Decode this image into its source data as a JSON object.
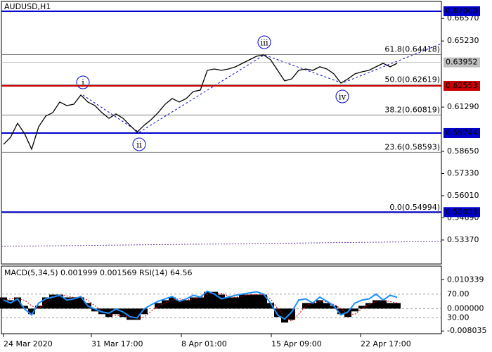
{
  "chart_data": [
    {
      "type": "line",
      "title": "AUDUSD,H1",
      "x": [
        0,
        1,
        2,
        3,
        4,
        5,
        6,
        7,
        8,
        9,
        10,
        11,
        12,
        13,
        14,
        15,
        16,
        17,
        18,
        19,
        20,
        21,
        22,
        23,
        24,
        25,
        26,
        27,
        28,
        29,
        30,
        31,
        32,
        33,
        34,
        35,
        36,
        37,
        38,
        39,
        40,
        41,
        42,
        43,
        44,
        45,
        46,
        47,
        48,
        49,
        50,
        51,
        52,
        53,
        54,
        55,
        56
      ],
      "series": [
        {
          "name": "AUDUSD",
          "color": "#000000",
          "values": [
            0.5907,
            0.5949,
            0.6033,
            0.597,
            0.5878,
            0.6012,
            0.6075,
            0.6096,
            0.6159,
            0.6138,
            0.6146,
            0.6201,
            0.6159,
            0.6138,
            0.6096,
            0.6062,
            0.6088,
            0.6062,
            0.602,
            0.5979,
            0.602,
            0.6054,
            0.6096,
            0.6146,
            0.618,
            0.6159,
            0.618,
            0.6222,
            0.623,
            0.6348,
            0.6356,
            0.6348,
            0.6356,
            0.6369,
            0.639,
            0.6411,
            0.6432,
            0.644,
            0.6411,
            0.6348,
            0.6285,
            0.6297,
            0.6348,
            0.6356,
            0.6348,
            0.6369,
            0.6356,
            0.6327,
            0.6272,
            0.6297,
            0.6327,
            0.6339,
            0.6348,
            0.6369,
            0.639,
            0.6369,
            0.639
          ]
        }
      ],
      "xlim": [
        -0.3,
        62.3
      ],
      "xticks": [
        {
          "value": 0,
          "label": "24 Mar 2020"
        },
        {
          "value": 12.5,
          "label": "31 Mar 17:00"
        },
        {
          "value": 25.3,
          "label": "8 Apr 01:00"
        },
        {
          "value": 38.1,
          "label": "15 Apr 09:00"
        },
        {
          "value": 50.8,
          "label": "22 Apr 17:00"
        }
      ],
      "ylim": [
        0.5194,
        0.6767
      ],
      "yticks": [
        {
          "value": 0.6657,
          "label": "0.66570"
        },
        {
          "value": 0.6523,
          "label": "0.65230"
        },
        {
          "value": 0.6129,
          "label": "0.61290"
        },
        {
          "value": 0.5865,
          "label": "0.58650"
        },
        {
          "value": 0.5733,
          "label": "0.57330"
        },
        {
          "value": 0.5601,
          "label": "0.56010"
        },
        {
          "value": 0.5469,
          "label": "0.54690"
        },
        {
          "value": 0.5337,
          "label": "0.53370"
        }
      ],
      "levels": [
        {
          "value": 0.67,
          "label": "0.67000",
          "color": "#0000cd"
        },
        {
          "value": 0.62553,
          "label": "0.62553",
          "color": "#cc0000"
        },
        {
          "value": 0.59744,
          "label": "0.59744",
          "color": "#0000cd"
        },
        {
          "value": 0.55033,
          "label": "0.55033",
          "color": "#0000cd"
        }
      ],
      "fib_levels": [
        {
          "value": 0.64418,
          "label": "61.8(0.64418)"
        },
        {
          "value": 0.62619,
          "label": "50.0(0.62619)"
        },
        {
          "value": 0.60819,
          "label": "38.2(0.60819)"
        },
        {
          "value": 0.58593,
          "label": "23.6(0.58593)"
        },
        {
          "value": 0.54994,
          "label": "0.0(0.54994)"
        }
      ],
      "current_price": {
        "value": 0.63952,
        "label": "0.63952"
      },
      "waves": [
        "i",
        "ii",
        "iii",
        "iv"
      ]
    },
    {
      "type": "bar",
      "title": "MACD(5,34,5) 0.001999 0.001569 RSI(14) 64.56",
      "series": [
        {
          "name": "MACD",
          "color": "#000000",
          "values": [
            0.004,
            0.003,
            0.004,
            0.001,
            -0.002,
            0.001,
            0.004,
            0.005,
            0.005,
            0.004,
            0.004,
            0.004,
            0.002,
            -0.001,
            -0.002,
            -0.003,
            -0.002,
            -0.003,
            -0.004,
            -0.004,
            -0.002,
            0.0,
            0.002,
            0.003,
            0.004,
            0.003,
            0.003,
            0.004,
            0.004,
            0.006,
            0.006,
            0.005,
            0.004,
            0.004,
            0.005,
            0.005,
            0.005,
            0.005,
            0.002,
            -0.003,
            -0.005,
            -0.004,
            0.0,
            0.002,
            0.002,
            0.003,
            0.002,
            0.001,
            -0.002,
            -0.003,
            -0.001,
            0.001,
            0.002,
            0.003,
            0.003,
            0.002,
            0.002
          ]
        },
        {
          "name": "Signal",
          "color": "#cc0000",
          "values": [
            0.003,
            0.0035,
            0.0035,
            0.003,
            0.001,
            0.0,
            0.002,
            0.004,
            0.005,
            0.0045,
            0.004,
            0.004,
            0.003,
            0.001,
            -0.001,
            -0.002,
            -0.0025,
            -0.0025,
            -0.003,
            -0.0035,
            -0.003,
            -0.001,
            0.001,
            0.002,
            0.003,
            0.0035,
            0.003,
            0.0035,
            0.004,
            0.005,
            0.0055,
            0.0055,
            0.0045,
            0.004,
            0.0045,
            0.005,
            0.005,
            0.005,
            0.0035,
            0.0,
            -0.003,
            -0.0045,
            -0.002,
            0.001,
            0.002,
            0.0025,
            0.0025,
            0.0015,
            0.0,
            -0.002,
            -0.002,
            0.0,
            0.0015,
            0.0025,
            0.003,
            0.0025,
            0.002
          ]
        },
        {
          "name": "RSI(14)",
          "color": "#1e90ff",
          "axis": "y2",
          "values": [
            60,
            55,
            62,
            45,
            35,
            55,
            62,
            65,
            68,
            60,
            62,
            66,
            50,
            45,
            40,
            38,
            45,
            40,
            32,
            30,
            45,
            52,
            58,
            62,
            66,
            58,
            62,
            68,
            65,
            75,
            70,
            62,
            65,
            68,
            70,
            72,
            74,
            70,
            55,
            35,
            28,
            40,
            60,
            62,
            55,
            65,
            58,
            50,
            35,
            40,
            55,
            60,
            62,
            70,
            60,
            68,
            64.56
          ]
        }
      ],
      "ylim": [
        -0.008483,
        0.011683
      ],
      "yticks": [
        {
          "value": 0.010339,
          "label": "0.010339"
        },
        {
          "value": 0,
          "label": "0.000000"
        },
        {
          "value": -0.008035,
          "label": "-0.008035"
        }
      ],
      "y2lim": [
        5.8,
        100.5
      ],
      "y2ticks": [
        {
          "value": 70,
          "label": "70.00"
        },
        {
          "value": 30,
          "label": "30.00"
        }
      ]
    }
  ]
}
